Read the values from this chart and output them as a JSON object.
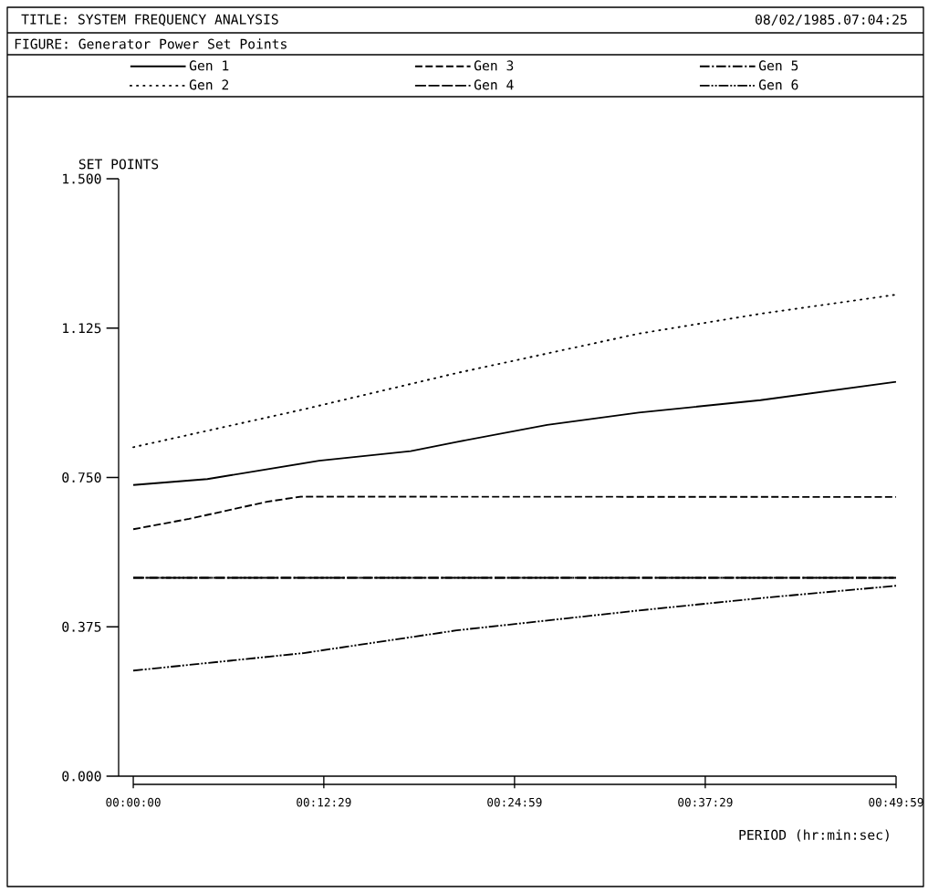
{
  "chart_data": {
    "type": "line",
    "title": "TITLE: SYSTEM FREQUENCY ANALYSIS",
    "subtitle": "FIGURE: Generator Power Set Points",
    "annotations": [
      "08/02/1985.07:04:25"
    ],
    "xlabel": "PERIOD (hr:min:sec)",
    "ylabel": "SET POINTS",
    "xlim": [
      -0.016,
      0.8331
    ],
    "xticks": [
      {
        "value": 0,
        "label": "00:00:00"
      },
      {
        "value": 0.2081,
        "label": "00:12:29"
      },
      {
        "value": 0.4164,
        "label": "00:24:59"
      },
      {
        "value": 0.6247,
        "label": "00:37:29"
      },
      {
        "value": 0.8331,
        "label": "00:49:59"
      }
    ],
    "ylim": [
      0,
      1.5
    ],
    "yticks": [
      {
        "value": 0,
        "label": "0.000"
      },
      {
        "value": 0.375,
        "label": "0.375"
      },
      {
        "value": 0.75,
        "label": "0.750"
      },
      {
        "value": 1.125,
        "label": "1.125"
      },
      {
        "value": 1.5,
        "label": "1.500"
      }
    ],
    "legend": "top",
    "grid": false,
    "marker": "none",
    "series": [
      {
        "name": "Gen 1",
        "color": "#000000",
        "line_style": "solid",
        "x": [
          0,
          0.081,
          0.203,
          0.303,
          0.353,
          0.452,
          0.552,
          0.685,
          0.8331
        ],
        "values": [
          0.731,
          0.746,
          0.792,
          0.816,
          0.839,
          0.882,
          0.913,
          0.944,
          0.99
        ]
      },
      {
        "name": "Gen 2",
        "color": "#000000",
        "line_style": "dotted",
        "x": [
          0,
          0.186,
          0.353,
          0.552,
          0.685,
          0.8331
        ],
        "values": [
          0.826,
          0.921,
          1.012,
          1.111,
          1.161,
          1.209
        ]
      },
      {
        "name": "Gen 3",
        "color": "#000000",
        "line_style": "dashed",
        "x": [
          0,
          0.061,
          0.146,
          0.183,
          0.8331
        ],
        "values": [
          0.62,
          0.646,
          0.689,
          0.702,
          0.701
        ]
      },
      {
        "name": "Gen 4",
        "color": "#000000",
        "line_style": "longdashed",
        "x": [
          0,
          0.8331
        ],
        "values": [
          0.498,
          0.498
        ]
      },
      {
        "name": "Gen 5",
        "color": "#000000",
        "line_style": "dashdot",
        "x": [
          0,
          0.8331
        ],
        "values": [
          0.498,
          0.498
        ]
      },
      {
        "name": "Gen 6",
        "color": "#000000",
        "line_style": "dashdotdot",
        "x": [
          0,
          0.186,
          0.353,
          0.552,
          0.685,
          0.8331
        ],
        "values": [
          0.265,
          0.309,
          0.366,
          0.416,
          0.447,
          0.478
        ]
      }
    ]
  }
}
